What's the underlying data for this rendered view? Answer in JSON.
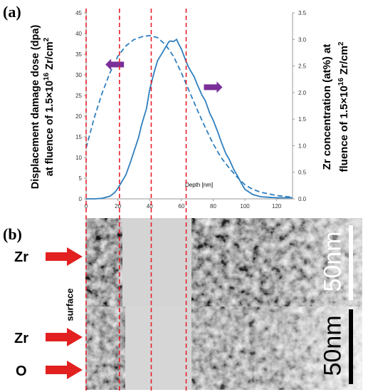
{
  "panel_labels": {
    "a": "(a)",
    "b": "(b)"
  },
  "chart_data": {
    "type": "line",
    "xlabel": "Depth [nm]",
    "xlim": [
      0,
      130
    ],
    "x_ticks": [
      "0",
      "20",
      "40",
      "60",
      "80",
      "100",
      "120"
    ],
    "ylabel_left": [
      "Displacement damage dose (dpa)",
      "at fluence  of 1.5×10",
      "16",
      " Zr/cm",
      "2"
    ],
    "ylabel_right": [
      "Zr concentration (at%) at",
      "fluence of 1.5×10",
      "16",
      " Zr/cm",
      "2"
    ],
    "ylim_left": [
      0,
      45
    ],
    "ylim_right": [
      0,
      3.5
    ],
    "y_ticks_left": [
      "0",
      "5",
      "10",
      "15",
      "20",
      "25",
      "30",
      "35",
      "40",
      "45"
    ],
    "y_ticks_right": [
      "0.0",
      "0.5",
      "1.0",
      "1.5",
      "2.0",
      "2.5",
      "3.0",
      "3.5"
    ],
    "line_color": "#2f7fbf",
    "guide_color": "#e8202a",
    "arrow_color": "#7a2f99",
    "grid": false,
    "series": [
      {
        "axis": "left",
        "style": "dashed",
        "x": [
          0,
          5,
          10,
          15,
          20,
          25,
          30,
          35,
          40,
          45,
          50,
          55,
          60,
          65,
          70,
          75,
          80,
          85,
          90,
          95,
          100,
          105,
          110,
          115,
          120,
          125,
          130
        ],
        "values": [
          12.3,
          19.5,
          25.5,
          30.5,
          34.5,
          37.0,
          38.5,
          39.2,
          39.5,
          39.0,
          37.3,
          34.5,
          30.5,
          26.0,
          21.5,
          17.3,
          13.3,
          10.0,
          7.5,
          5.3,
          3.4,
          2.3,
          1.6,
          1.2,
          0.8,
          0.6,
          0.4
        ]
      },
      {
        "axis": "right",
        "style": "solid",
        "x": [
          0,
          5,
          10,
          15,
          18,
          20,
          22,
          25,
          28,
          30,
          33,
          35,
          38,
          40,
          43,
          45,
          48,
          50,
          52,
          53,
          55,
          57,
          58,
          60,
          62,
          63,
          65,
          68,
          70,
          73,
          75,
          78,
          80,
          83,
          85,
          88,
          90,
          93,
          95,
          98,
          100,
          105,
          110,
          115,
          120,
          125,
          130
        ],
        "values": [
          0.0,
          0.0,
          0.01,
          0.05,
          0.12,
          0.2,
          0.3,
          0.45,
          0.7,
          0.88,
          1.15,
          1.4,
          1.7,
          2.05,
          2.4,
          2.6,
          2.75,
          2.85,
          2.95,
          2.97,
          2.96,
          3.0,
          2.93,
          2.82,
          2.66,
          2.58,
          2.45,
          2.3,
          2.15,
          1.95,
          1.85,
          1.6,
          1.48,
          1.25,
          1.08,
          0.85,
          0.75,
          0.55,
          0.45,
          0.28,
          0.18,
          0.08,
          0.04,
          0.03,
          0.02,
          0.02,
          0.02
        ]
      }
    ],
    "guide_lines_x": [
      0,
      21,
      41,
      63
    ],
    "arrows": [
      {
        "direction": "left",
        "x": 18,
        "y_left": 32.5
      },
      {
        "direction": "right",
        "x": 80,
        "y_left": 27
      }
    ]
  },
  "micrograph": {
    "surface_label": "surface",
    "labels": [
      "Zr",
      "Zr",
      "O"
    ],
    "scale_bars": [
      {
        "text": "50nm",
        "color": "#ffffff"
      },
      {
        "text": "50nm",
        "color": "#000000"
      }
    ]
  }
}
